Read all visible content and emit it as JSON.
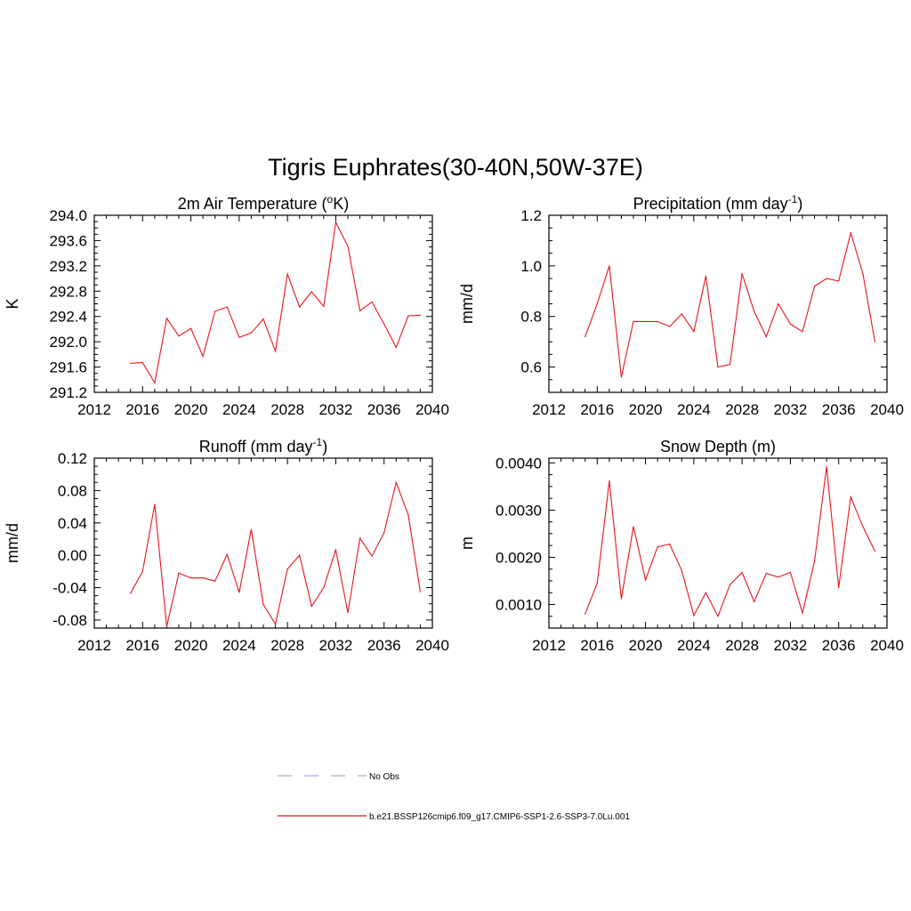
{
  "figure": {
    "title": "Tigris Euphrates(30-40N,50W-37E)"
  },
  "colors": {
    "model_line": "#e8141c",
    "obs_line": "#a9a9e0",
    "axis": "#000000"
  },
  "chart_data": [
    {
      "type": "line",
      "title": "2m Air Temperature (°K)",
      "title_parts": [
        "2m Air Temperature (",
        "o",
        "K)"
      ],
      "ylabel": "K",
      "xlim": [
        2012,
        2040
      ],
      "ylim": [
        291.2,
        294.0
      ],
      "xticks": [
        2012,
        2016,
        2020,
        2024,
        2028,
        2032,
        2036,
        2040
      ],
      "yticks": [
        "291.2",
        "291.6",
        "292.0",
        "292.4",
        "292.8",
        "293.2",
        "293.6",
        "294.0"
      ],
      "x": [
        2015,
        2016,
        2017,
        2018,
        2019,
        2020,
        2021,
        2022,
        2023,
        2024,
        2025,
        2026,
        2027,
        2028,
        2029,
        2030,
        2031,
        2032,
        2033,
        2034,
        2035,
        2036,
        2037,
        2038,
        2039
      ],
      "series": [
        {
          "name": "b.e21.BSSP126cmip6.f09_g17.CMIP6-SSP1-2.6-SSP3-7.0Lu.001",
          "values": [
            291.66,
            291.67,
            291.35,
            292.37,
            292.09,
            292.21,
            291.77,
            292.48,
            292.55,
            292.07,
            292.14,
            292.36,
            291.85,
            293.07,
            292.55,
            292.79,
            292.56,
            293.89,
            293.51,
            292.49,
            292.63,
            292.28,
            291.91,
            292.41,
            292.42
          ]
        }
      ]
    },
    {
      "type": "line",
      "title": "Precipitation (mm day-1)",
      "title_parts": [
        "Precipitation (mm day",
        "-1",
        ")"
      ],
      "ylabel": "mm/d",
      "xlim": [
        2012,
        2040
      ],
      "ylim": [
        0.5,
        1.2
      ],
      "xticks": [
        2012,
        2016,
        2020,
        2024,
        2028,
        2032,
        2036,
        2040
      ],
      "yticks": [
        "0.6",
        "0.8",
        "1.0",
        "1.2"
      ],
      "x": [
        2015,
        2016,
        2017,
        2018,
        2019,
        2020,
        2021,
        2022,
        2023,
        2024,
        2025,
        2026,
        2027,
        2028,
        2029,
        2030,
        2031,
        2032,
        2033,
        2034,
        2035,
        2036,
        2037,
        2038,
        2039
      ],
      "series": [
        {
          "name": "b.e21.BSSP126cmip6.f09_g17.CMIP6-SSP1-2.6-SSP3-7.0Lu.001",
          "values": [
            0.72,
            0.85,
            1.0,
            0.56,
            0.78,
            0.78,
            0.78,
            0.76,
            0.81,
            0.74,
            0.96,
            0.6,
            0.61,
            0.97,
            0.82,
            0.72,
            0.85,
            0.77,
            0.74,
            0.92,
            0.95,
            0.94,
            1.13,
            0.97,
            0.7
          ]
        }
      ]
    },
    {
      "type": "line",
      "title": "Runoff (mm day-1)",
      "title_parts": [
        "Runoff (mm day",
        "-1",
        ")"
      ],
      "ylabel": "mm/d",
      "xlim": [
        2012,
        2040
      ],
      "ylim": [
        -0.09,
        0.12
      ],
      "xticks": [
        2012,
        2016,
        2020,
        2024,
        2028,
        2032,
        2036,
        2040
      ],
      "yticks": [
        "-0.08",
        "-0.04",
        "0.00",
        "0.04",
        "0.08",
        "0.12"
      ],
      "x": [
        2015,
        2016,
        2017,
        2018,
        2019,
        2020,
        2021,
        2022,
        2023,
        2024,
        2025,
        2026,
        2027,
        2028,
        2029,
        2030,
        2031,
        2032,
        2033,
        2034,
        2035,
        2036,
        2037,
        2038,
        2039
      ],
      "series": [
        {
          "name": "b.e21.BSSP126cmip6.f09_g17.CMIP6-SSP1-2.6-SSP3-7.0Lu.001",
          "values": [
            -0.047,
            -0.02,
            0.063,
            -0.088,
            -0.022,
            -0.028,
            -0.028,
            -0.032,
            0.001,
            -0.046,
            0.032,
            -0.061,
            -0.085,
            -0.017,
            0.0,
            -0.063,
            -0.04,
            0.007,
            -0.071,
            0.021,
            -0.001,
            0.028,
            0.09,
            0.05,
            -0.045
          ]
        }
      ]
    },
    {
      "type": "line",
      "title": "Snow Depth (m)",
      "title_parts": [
        "Snow Depth (m)",
        "",
        ""
      ],
      "ylabel": "m",
      "xlim": [
        2012,
        2040
      ],
      "ylim": [
        0.0005,
        0.0041
      ],
      "xticks": [
        2012,
        2016,
        2020,
        2024,
        2028,
        2032,
        2036,
        2040
      ],
      "yticks": [
        "0.0010",
        "0.0020",
        "0.0030",
        "0.0040"
      ],
      "x": [
        2015,
        2016,
        2017,
        2018,
        2019,
        2020,
        2021,
        2022,
        2023,
        2024,
        2025,
        2026,
        2027,
        2028,
        2029,
        2030,
        2031,
        2032,
        2033,
        2034,
        2035,
        2036,
        2037,
        2038,
        2039
      ],
      "series": [
        {
          "name": "b.e21.BSSP126cmip6.f09_g17.CMIP6-SSP1-2.6-SSP3-7.0Lu.001",
          "values": [
            0.0008,
            0.00145,
            0.00362,
            0.00112,
            0.00265,
            0.00152,
            0.00222,
            0.00228,
            0.00172,
            0.00077,
            0.00125,
            0.00075,
            0.00142,
            0.00168,
            0.00106,
            0.00166,
            0.00158,
            0.00168,
            0.00082,
            0.00192,
            0.00392,
            0.00136,
            0.00328,
            0.00265,
            0.00213
          ]
        }
      ]
    }
  ],
  "legend": {
    "items": [
      {
        "label": "No Obs",
        "style": "dashed"
      },
      {
        "label": "b.e21.BSSP126cmip6.f09_g17.CMIP6-SSP1-2.6-SSP3-7.0Lu.001",
        "style": "solid"
      }
    ]
  }
}
